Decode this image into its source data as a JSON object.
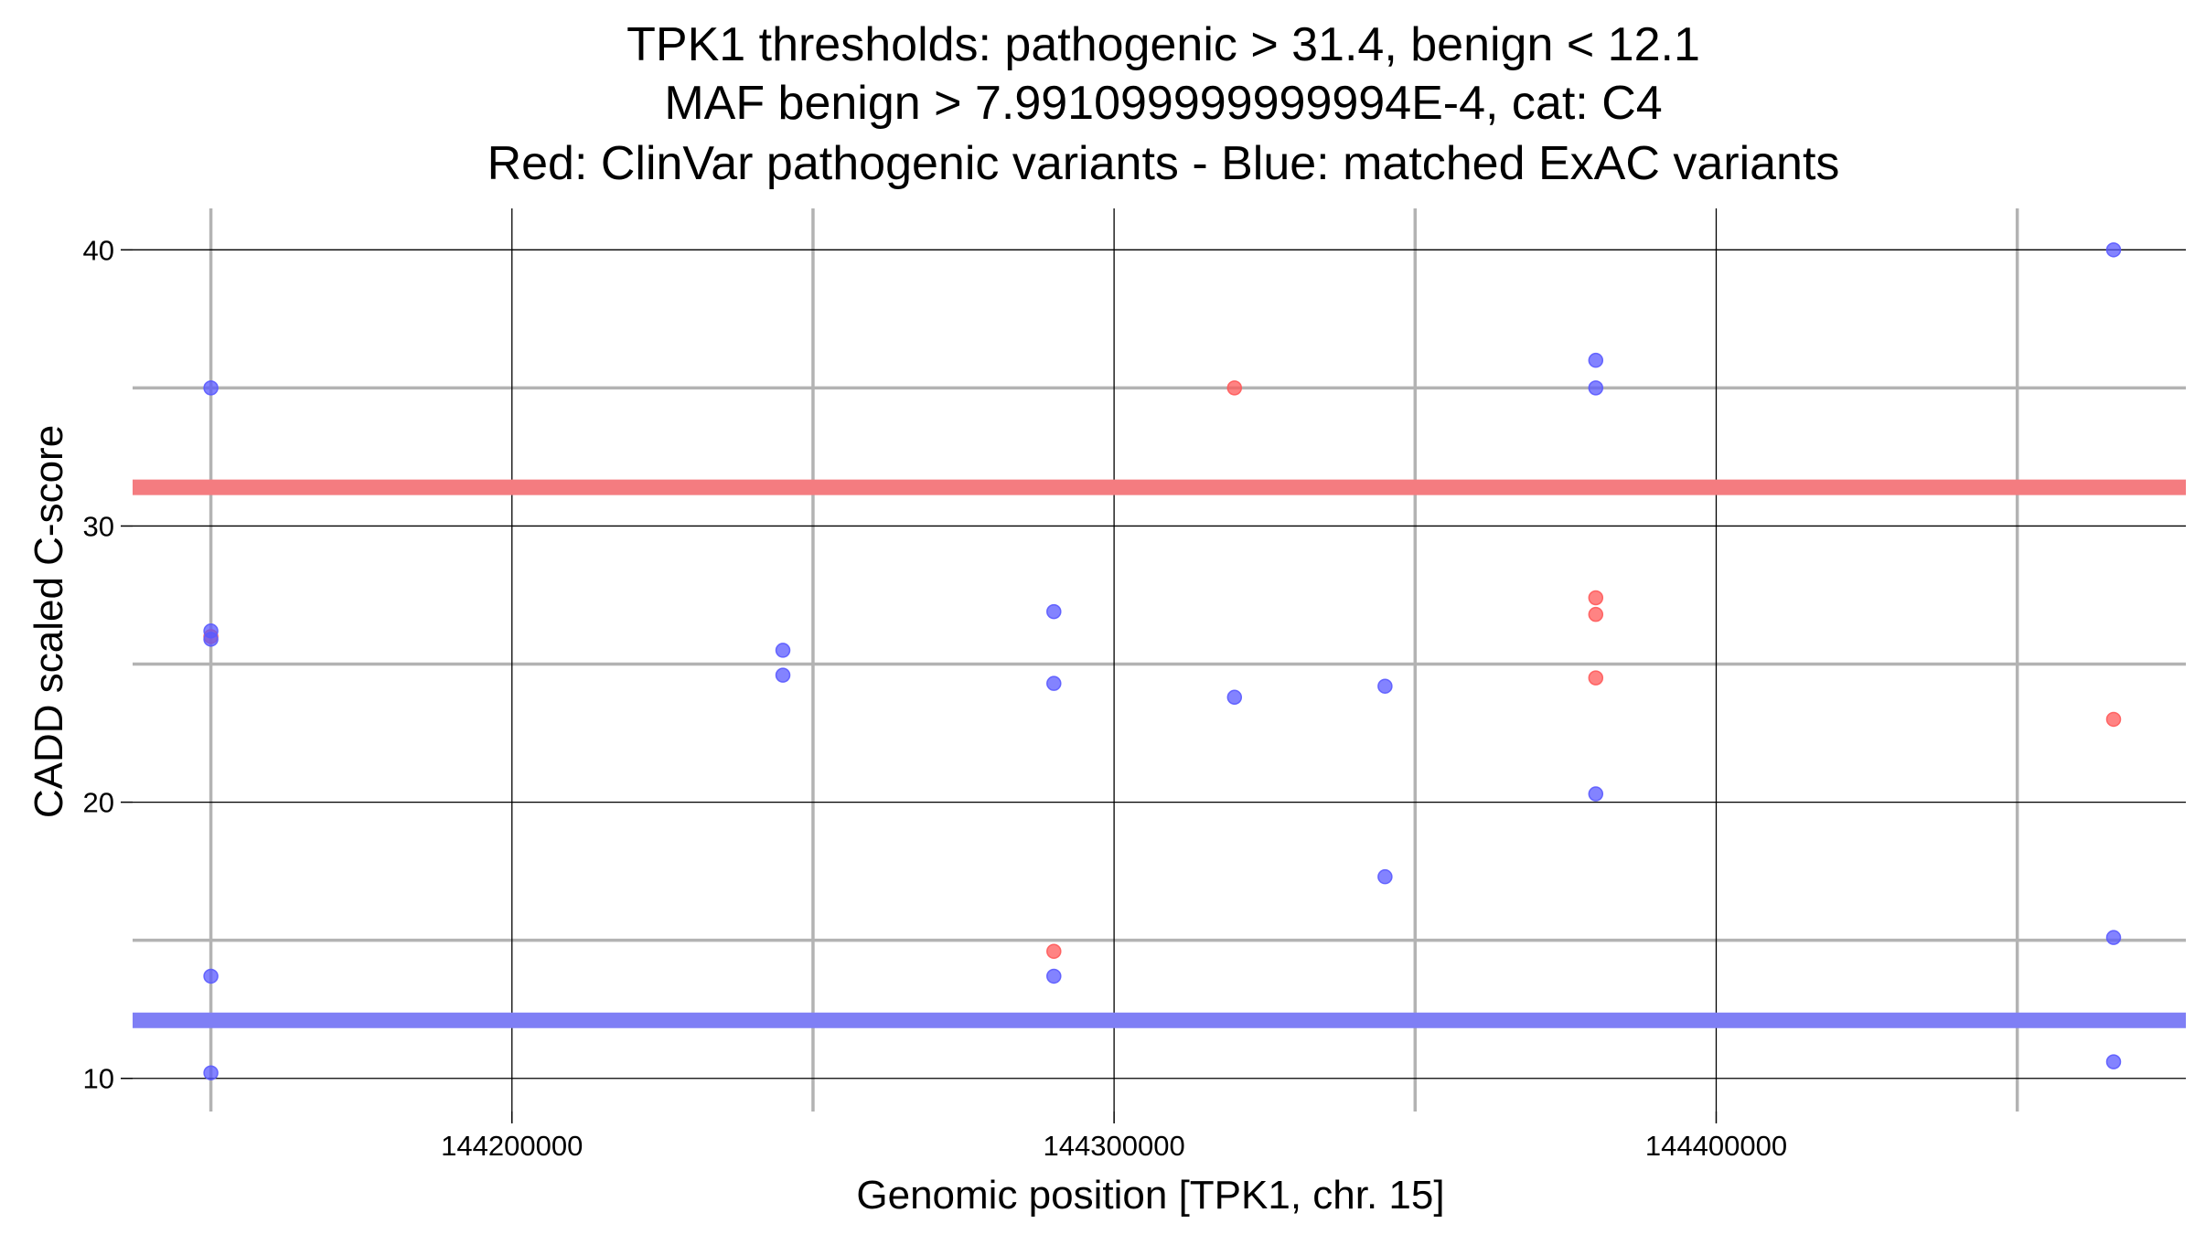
{
  "chart_data": {
    "type": "scatter",
    "title_lines": [
      "TPK1 thresholds: pathogenic > 31.4, benign < 12.1",
      "MAF benign > 7.991099999999994E-4, cat: C4",
      "Red: ClinVar pathogenic variants - Blue: matched ExAC variants"
    ],
    "xlabel": "Genomic position [TPK1, chr. 15]",
    "ylabel": "CADD scaled C-score",
    "xlim": [
      144137000,
      144478000
    ],
    "ylim": [
      8.8,
      41.5
    ],
    "x_major_ticks": [
      144200000,
      144300000,
      144400000
    ],
    "x_tick_labels": [
      "144200000",
      "144300000",
      "144400000"
    ],
    "x_minor_ticks": [
      144150000,
      144250000,
      144350000,
      144450000
    ],
    "y_major_ticks": [
      10,
      20,
      30,
      40
    ],
    "y_tick_labels": [
      "10",
      "20",
      "30",
      "40"
    ],
    "y_minor_ticks": [
      15,
      25,
      35
    ],
    "grid": true,
    "thresholds": [
      {
        "value": 31.4,
        "color": "#f47c80"
      },
      {
        "value": 12.1,
        "color": "#7f7ff5"
      }
    ],
    "series": [
      {
        "color": "#ff5a5a",
        "points": [
          [
            144150000,
            26.0
          ],
          [
            144320000,
            35.0
          ],
          [
            144290000,
            14.6
          ],
          [
            144380000,
            27.4
          ],
          [
            144380000,
            26.8
          ],
          [
            144380000,
            24.5
          ],
          [
            144466000,
            23.0
          ]
        ]
      },
      {
        "color": "#5a5aff",
        "points": [
          [
            144150000,
            35.0
          ],
          [
            144150000,
            26.2
          ],
          [
            144150000,
            25.9
          ],
          [
            144150000,
            13.7
          ],
          [
            144150000,
            10.2
          ],
          [
            144245000,
            25.5
          ],
          [
            144245000,
            24.6
          ],
          [
            144290000,
            26.9
          ],
          [
            144290000,
            24.3
          ],
          [
            144290000,
            13.7
          ],
          [
            144320000,
            23.8
          ],
          [
            144345000,
            24.2
          ],
          [
            144345000,
            17.3
          ],
          [
            144380000,
            36.0
          ],
          [
            144380000,
            35.0
          ],
          [
            144380000,
            20.3
          ],
          [
            144466000,
            40.0
          ],
          [
            144466000,
            15.1
          ],
          [
            144466000,
            10.6
          ]
        ]
      }
    ]
  }
}
